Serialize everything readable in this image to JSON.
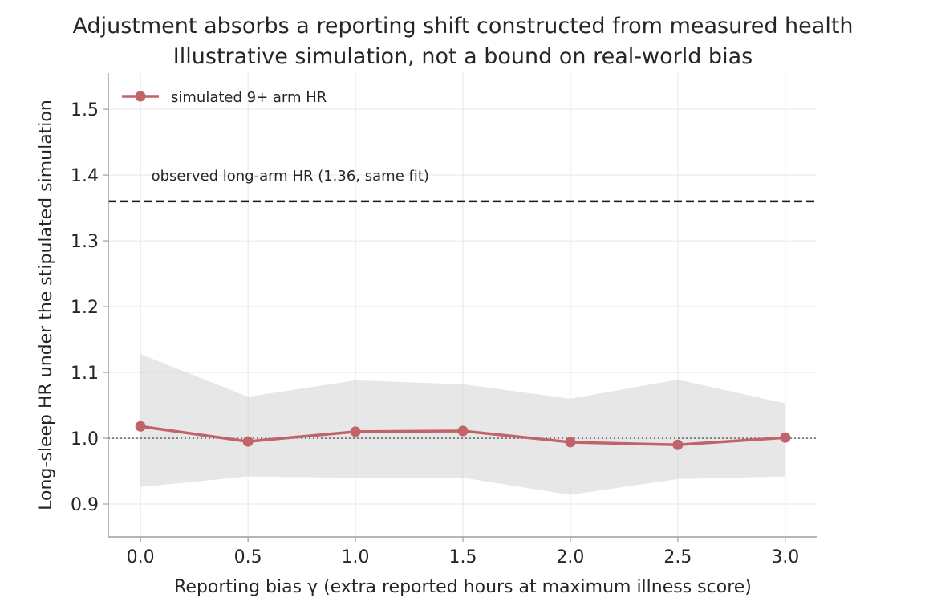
{
  "chart_data": {
    "type": "line",
    "title": "Adjustment absorbs a reporting shift constructed from measured health",
    "subtitle": "Illustrative simulation, not a bound on real-world bias",
    "xlabel": "Reporting bias γ (extra reported hours at maximum illness score)",
    "ylabel": "Long-sleep HR under the stipulated simulation",
    "xlim": [
      -0.15,
      3.15
    ],
    "ylim": [
      0.85,
      1.555
    ],
    "xticks": [
      0.0,
      0.5,
      1.0,
      1.5,
      2.0,
      2.5,
      3.0
    ],
    "xtick_labels": [
      "0.0",
      "0.5",
      "1.0",
      "1.5",
      "2.0",
      "2.5",
      "3.0"
    ],
    "yticks": [
      0.9,
      1.0,
      1.1,
      1.2,
      1.3,
      1.4,
      1.5
    ],
    "ytick_labels": [
      "0.9",
      "1.0",
      "1.1",
      "1.2",
      "1.3",
      "1.4",
      "1.5"
    ],
    "grid": true,
    "legend_position": "top-left",
    "series": [
      {
        "name": "simulated 9+ arm HR",
        "color": "#c0646a",
        "x": [
          0.0,
          0.5,
          1.0,
          1.5,
          2.0,
          2.5,
          3.0
        ],
        "y": [
          1.018,
          0.995,
          1.01,
          1.011,
          0.994,
          0.99,
          1.001
        ],
        "band_lower": [
          0.926,
          0.942,
          0.94,
          0.94,
          0.914,
          0.938,
          0.942
        ],
        "band_upper": [
          1.128,
          1.063,
          1.088,
          1.082,
          1.06,
          1.089,
          1.053
        ]
      }
    ],
    "band_color": "#d3d3d3",
    "reference_lines": [
      {
        "y": 1.36,
        "style": "dashed",
        "color": "#1a1a1a",
        "label": "observed long-arm HR (1.36, same fit)"
      },
      {
        "y": 1.0,
        "style": "dotted",
        "color": "#555555",
        "label": ""
      }
    ]
  }
}
